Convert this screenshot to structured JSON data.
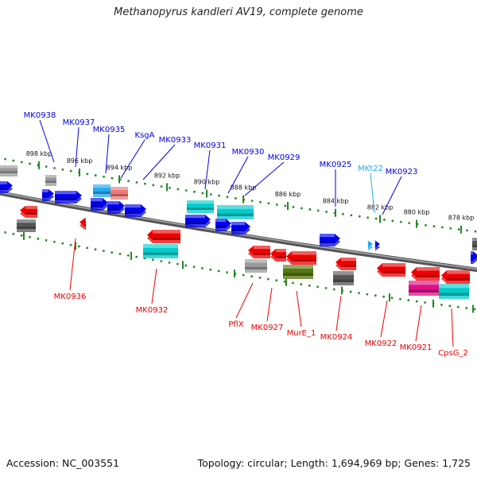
{
  "title": "Methanopyrus kandleri AV19, complete genome",
  "footer": {
    "accession": "Accession: NC_003551",
    "summary": "Topology: circular; Length: 1,694,969 bp; Genes: 1,725"
  },
  "ruler": {
    "tick_labels": [
      "898 kbp",
      "896 kbp",
      "894 kbp",
      "892 kbp",
      "890 kbp",
      "888 kbp",
      "886 kbp",
      "884 kbp",
      "882 kbp",
      "880 kbp",
      "878 kbp"
    ]
  },
  "colors": {
    "forward": "#0000ee",
    "reverse": "#ee0000",
    "cyan": "#00cccc",
    "light_blue": "#22aaee",
    "pink": "#ee7777",
    "grey": "#999999",
    "dark_grey": "#555555",
    "olive": "#557711",
    "magenta": "#dd1188",
    "backbone": "#777777",
    "ruler": "#228822"
  },
  "gene_labels": {
    "top": [
      "MK0938",
      "MK0937",
      "MK0935",
      "KsgA",
      "MK0933",
      "MK0931",
      "MK0930",
      "MK0929",
      "MK0925",
      "MKt22",
      "MK0923"
    ],
    "bottom": [
      "MK0936",
      "MK0932",
      "PflX",
      "MK0927",
      "MurE_1",
      "MK0924",
      "MK0922",
      "MK0921",
      "CpsG_2"
    ]
  }
}
